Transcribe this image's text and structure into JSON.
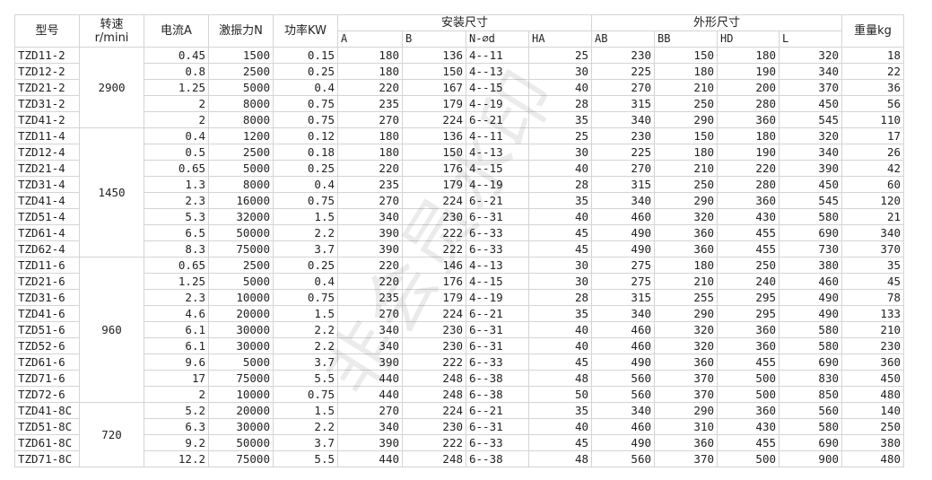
{
  "header": {
    "model": "型号",
    "speed": "转速\nr/mini",
    "current": "电流A",
    "force": "激振力N",
    "power": "功率KW",
    "install_group": "安装尺寸",
    "outline_group": "外形尺寸",
    "weight": "重量kg",
    "install_cols": [
      "A",
      "B",
      "N-⌀d",
      "HA"
    ],
    "outline_cols": [
      "AB",
      "BB",
      "HD",
      "L"
    ]
  },
  "groups": [
    {
      "speed": "2900",
      "rows": [
        [
          "TZD11-2",
          "0.45",
          "1500",
          "0.15",
          "180",
          "136",
          "4--11",
          "25",
          "230",
          "150",
          "180",
          "320",
          "18"
        ],
        [
          "TZD12-2",
          "0.8",
          "2500",
          "0.25",
          "180",
          "150",
          "4--13",
          "30",
          "225",
          "180",
          "190",
          "340",
          "22"
        ],
        [
          "TZD21-2",
          "1.25",
          "5000",
          "0.4",
          "220",
          "167",
          "4--15",
          "40",
          "270",
          "210",
          "200",
          "370",
          "36"
        ],
        [
          "TZD31-2",
          "2",
          "8000",
          "0.75",
          "235",
          "179",
          "4--19",
          "28",
          "315",
          "250",
          "280",
          "450",
          "56"
        ],
        [
          "TZD41-2",
          "2",
          "8000",
          "0.75",
          "270",
          "224",
          "6--21",
          "35",
          "340",
          "290",
          "360",
          "545",
          "110"
        ]
      ]
    },
    {
      "speed": "1450",
      "rows": [
        [
          "TZD11-4",
          "0.4",
          "1200",
          "0.12",
          "180",
          "136",
          "4--11",
          "25",
          "230",
          "150",
          "180",
          "320",
          "17"
        ],
        [
          "TZD12-4",
          "0.5",
          "2500",
          "0.18",
          "180",
          "150",
          "4--13",
          "30",
          "225",
          "180",
          "190",
          "340",
          "26"
        ],
        [
          "TZD21-4",
          "0.65",
          "5000",
          "0.25",
          "220",
          "176",
          "4--15",
          "40",
          "270",
          "210",
          "220",
          "390",
          "42"
        ],
        [
          "TZD31-4",
          "1.3",
          "8000",
          "0.4",
          "235",
          "179",
          "4--19",
          "28",
          "315",
          "250",
          "280",
          "450",
          "60"
        ],
        [
          "TZD41-4",
          "2.3",
          "16000",
          "0.75",
          "270",
          "224",
          "6--21",
          "35",
          "340",
          "290",
          "360",
          "545",
          "120"
        ],
        [
          "TZD51-4",
          "5.3",
          "32000",
          "1.5",
          "340",
          "230",
          "6--31",
          "40",
          "460",
          "320",
          "430",
          "580",
          "21"
        ],
        [
          "TZD61-4",
          "6.5",
          "50000",
          "2.2",
          "390",
          "222",
          "6--33",
          "45",
          "490",
          "360",
          "455",
          "690",
          "340"
        ],
        [
          "TZD62-4",
          "8.3",
          "75000",
          "3.7",
          "390",
          "222",
          "6--33",
          "45",
          "490",
          "360",
          "455",
          "730",
          "370"
        ]
      ]
    },
    {
      "speed": "960",
      "rows": [
        [
          "TZD11-6",
          "0.65",
          "2500",
          "0.25",
          "220",
          "146",
          "4--13",
          "30",
          "275",
          "180",
          "250",
          "380",
          "35"
        ],
        [
          "TZD21-6",
          "1.25",
          "5000",
          "0.4",
          "220",
          "176",
          "4--15",
          "30",
          "275",
          "210",
          "240",
          "460",
          "45"
        ],
        [
          "TZD31-6",
          "2.3",
          "10000",
          "0.75",
          "235",
          "179",
          "4--19",
          "28",
          "315",
          "255",
          "295",
          "490",
          "78"
        ],
        [
          "TZD41-6",
          "4.6",
          "20000",
          "1.5",
          "270",
          "224",
          "6--21",
          "35",
          "340",
          "290",
          "295",
          "490",
          "133"
        ],
        [
          "TZD51-6",
          "6.1",
          "30000",
          "2.2",
          "340",
          "230",
          "6--31",
          "40",
          "460",
          "320",
          "360",
          "580",
          "210"
        ],
        [
          "TZD52-6",
          "6.1",
          "30000",
          "2.2",
          "340",
          "230",
          "6--31",
          "40",
          "460",
          "320",
          "360",
          "580",
          "230"
        ],
        [
          "TZD61-6",
          "9.6",
          "5000",
          "3.7",
          "390",
          "222",
          "6--33",
          "45",
          "490",
          "360",
          "455",
          "690",
          "360"
        ],
        [
          "TZD71-6",
          "17",
          "75000",
          "5.5",
          "440",
          "248",
          "6--38",
          "48",
          "560",
          "370",
          "500",
          "830",
          "450"
        ],
        [
          "TZD72-6",
          "2",
          "10000",
          "0.75",
          "440",
          "248",
          "6--38",
          "50",
          "560",
          "370",
          "500",
          "850",
          "480"
        ]
      ]
    },
    {
      "speed": "720",
      "rows": [
        [
          "TZD41-8C",
          "5.2",
          "20000",
          "1.5",
          "270",
          "224",
          "6--21",
          "35",
          "340",
          "290",
          "360",
          "560",
          "140"
        ],
        [
          "TZD51-8C",
          "6.3",
          "30000",
          "2.2",
          "340",
          "230",
          "6--31",
          "40",
          "460",
          "310",
          "430",
          "580",
          "250"
        ],
        [
          "TZD61-8C",
          "9.2",
          "50000",
          "3.7",
          "390",
          "222",
          "6--33",
          "45",
          "490",
          "360",
          "455",
          "690",
          "380"
        ],
        [
          "TZD71-8C",
          "12.2",
          "75000",
          "5.5",
          "440",
          "248",
          "6--38",
          "48",
          "560",
          "370",
          "500",
          "900",
          "480"
        ]
      ]
    }
  ],
  "watermark": "非会员水印"
}
